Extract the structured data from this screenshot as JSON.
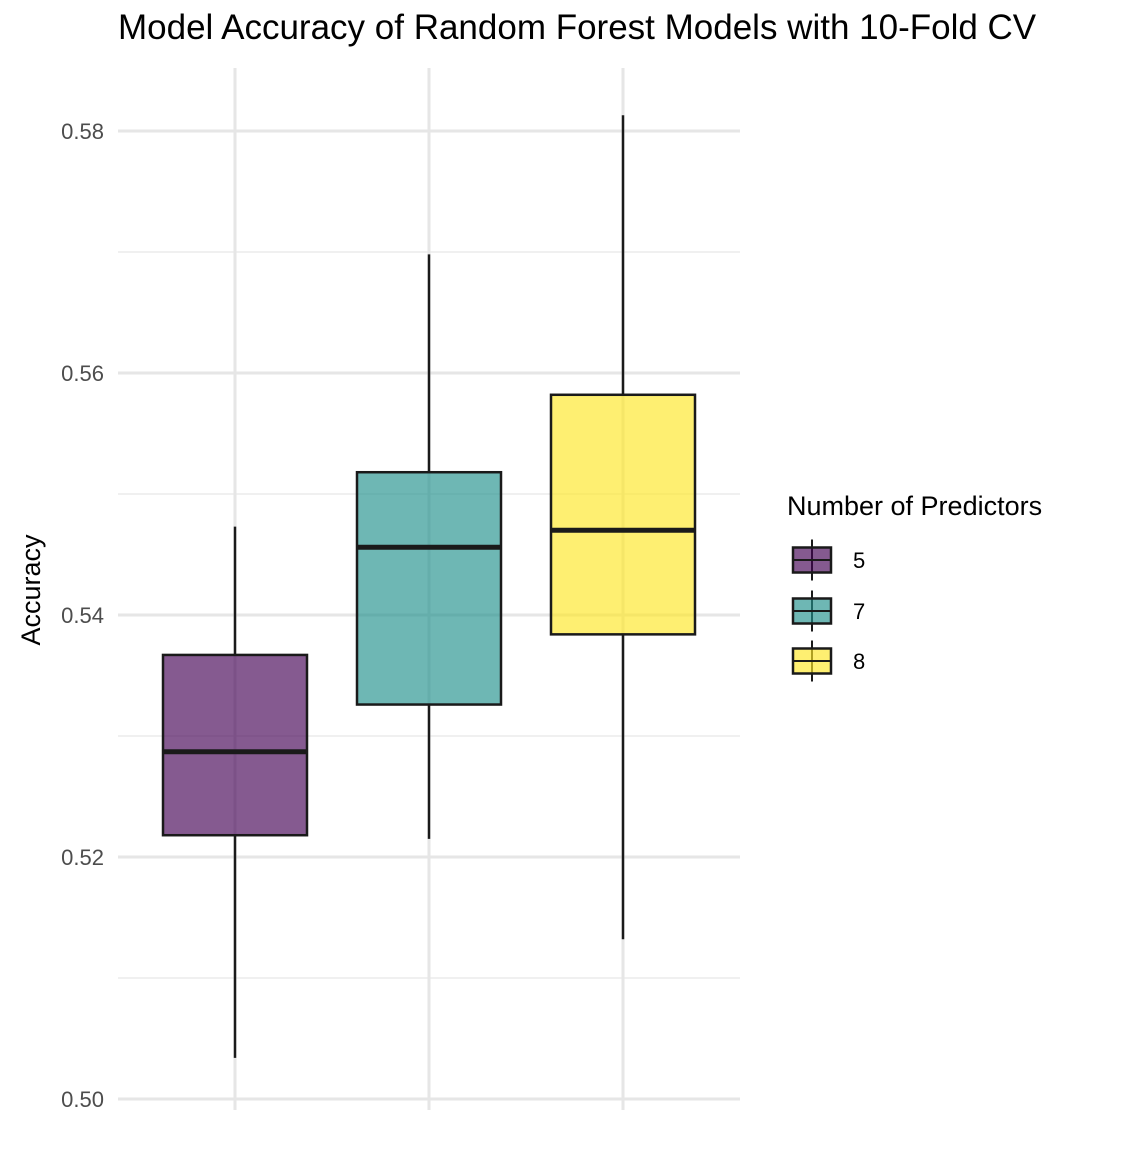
{
  "title": "Model Accuracy of Random Forest Models with 10-Fold CV",
  "chart_data": {
    "type": "boxplot",
    "title": "Model Accuracy of Random Forest Models with 10-Fold CV",
    "xlabel": "",
    "ylabel": "Accuracy",
    "ylim": [
      0.499,
      0.585
    ],
    "yticks": [
      0.5,
      0.52,
      0.54,
      0.56,
      0.58
    ],
    "ytick_labels": [
      "0.50",
      "0.52",
      "0.54",
      "0.56",
      "0.58"
    ],
    "grid": true,
    "legend_title": "Number of Predictors",
    "legend_position": "right",
    "categories": [
      "5",
      "7",
      "8"
    ],
    "series": [
      {
        "name": "5",
        "color": "#440154",
        "min": 0.5034,
        "q1": 0.5218,
        "median": 0.5287,
        "q3": 0.5367,
        "max": 0.5473
      },
      {
        "name": "7",
        "color": "#21908C",
        "min": 0.5215,
        "q1": 0.5326,
        "median": 0.5456,
        "q3": 0.5518,
        "max": 0.5698
      },
      {
        "name": "8",
        "color": "#FDE725",
        "min": 0.5132,
        "q1": 0.5384,
        "median": 0.547,
        "q3": 0.5582,
        "max": 0.5813
      }
    ]
  }
}
